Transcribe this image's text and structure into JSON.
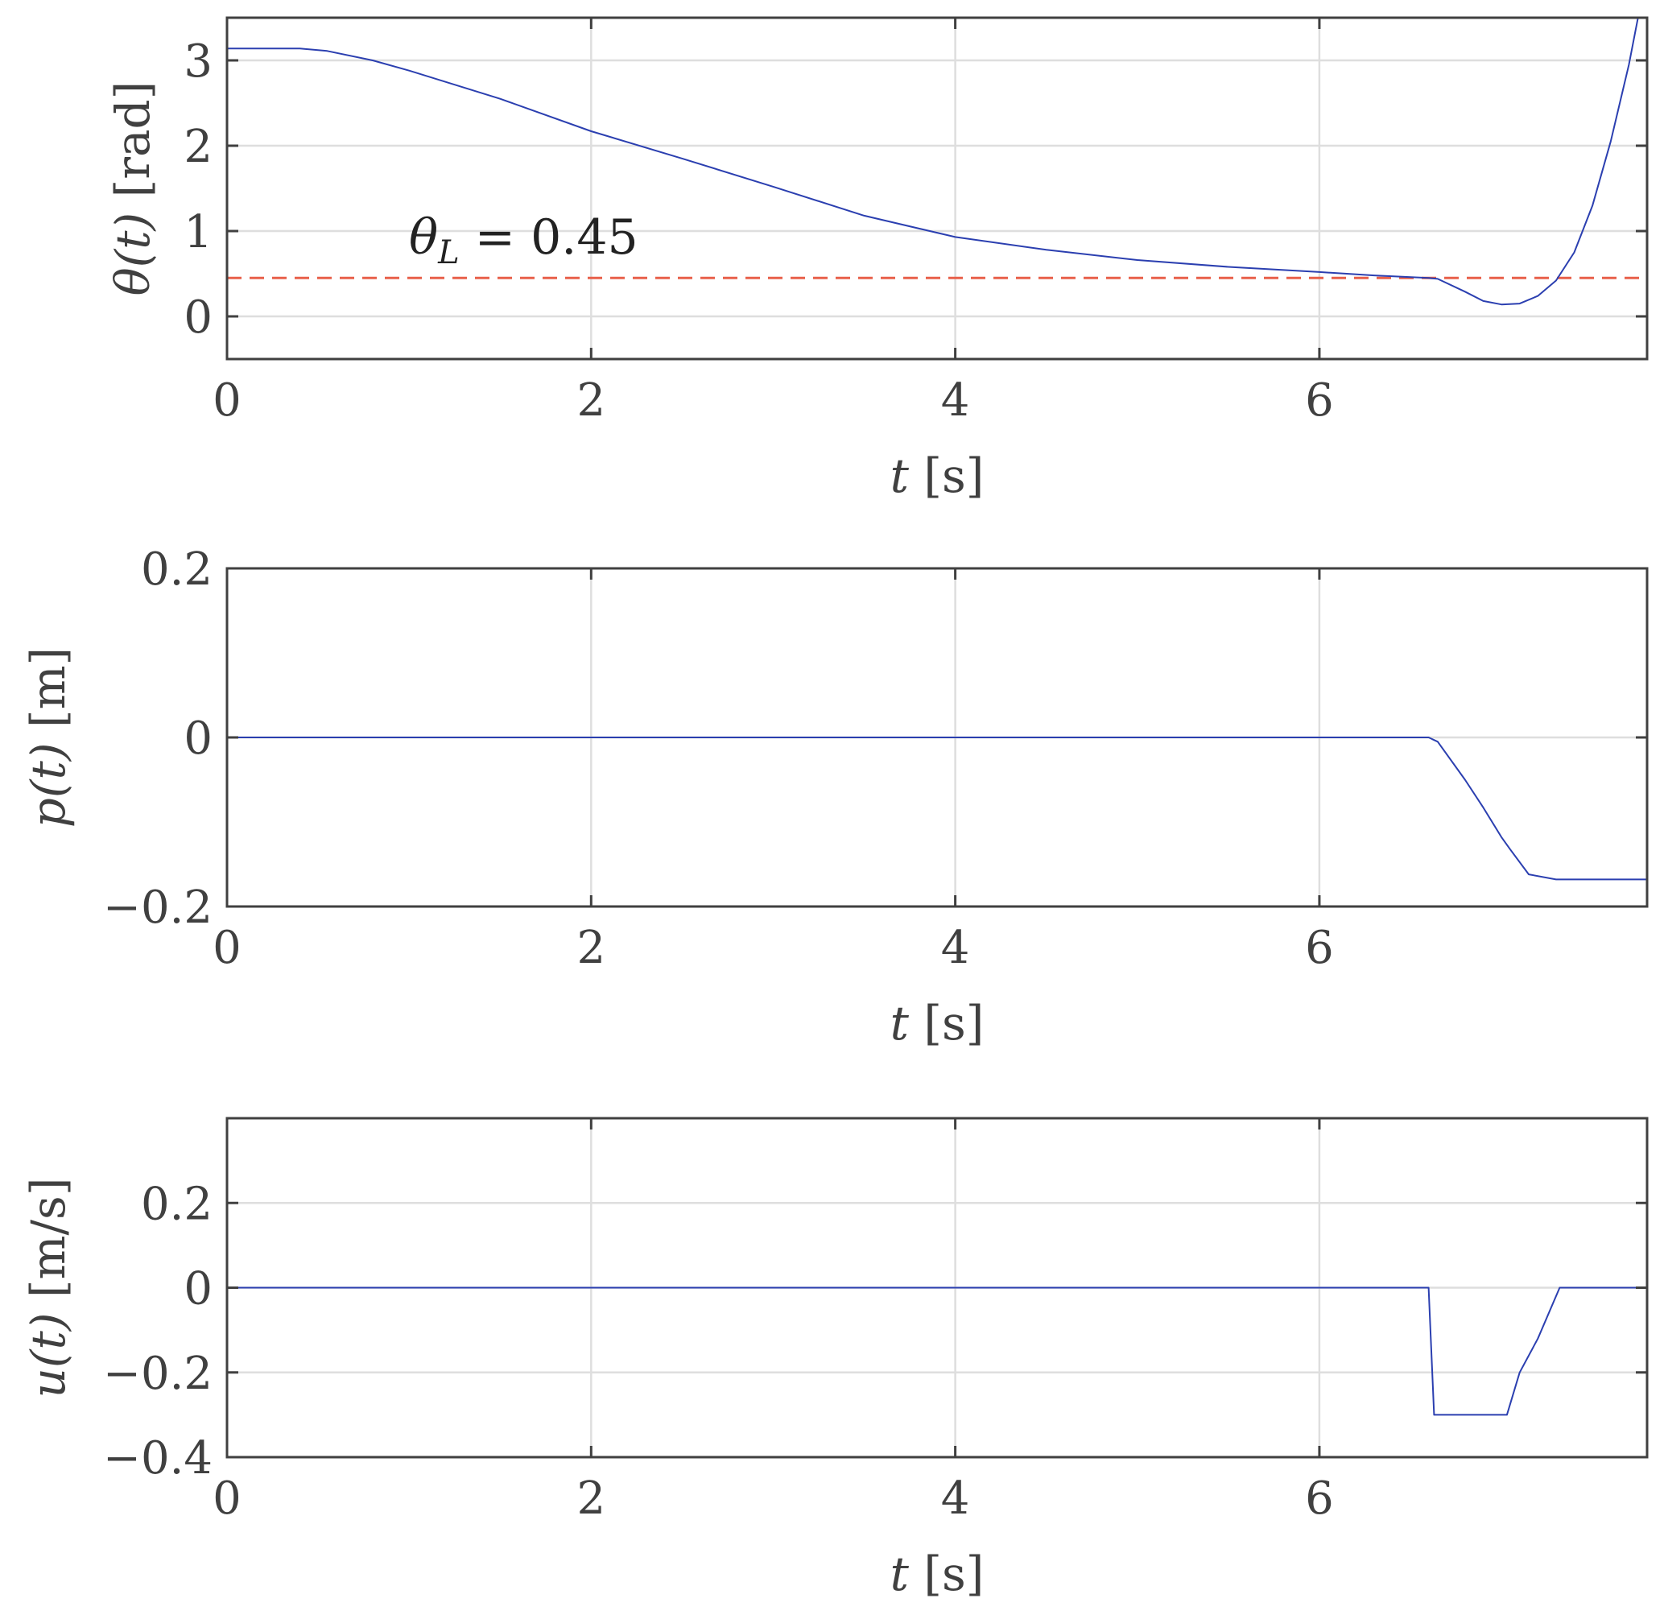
{
  "chart_data": [
    {
      "type": "line",
      "xlabel": "t [s]",
      "ylabel": "θ(t) [rad]",
      "xlim": [
        0,
        7.8
      ],
      "ylim": [
        -0.5,
        3.5
      ],
      "xticks": [
        0,
        2,
        4,
        6
      ],
      "yticks": [
        0,
        1,
        2,
        3
      ],
      "grid": true,
      "colors": {
        "series": "#2b3fb0",
        "threshold": "#e8604a"
      },
      "series": [
        {
          "x": [
            0,
            0.4,
            0.55,
            0.8,
            1.0,
            1.5,
            2.0,
            2.5,
            3.0,
            3.5,
            4.0,
            4.5,
            5.0,
            5.5,
            6.0,
            6.3,
            6.6,
            6.65,
            6.8,
            6.9,
            7.0,
            7.1,
            7.2,
            7.3,
            7.4,
            7.5,
            7.6,
            7.7,
            7.75
          ],
          "y": [
            3.14,
            3.14,
            3.11,
            3.0,
            2.88,
            2.55,
            2.17,
            1.85,
            1.52,
            1.18,
            0.93,
            0.78,
            0.66,
            0.58,
            0.52,
            0.48,
            0.45,
            0.44,
            0.29,
            0.18,
            0.14,
            0.15,
            0.24,
            0.42,
            0.75,
            1.3,
            2.05,
            2.95,
            3.5
          ]
        }
      ],
      "threshold": {
        "y": 0.45,
        "style": "dashed"
      },
      "annotation": {
        "symbol": "θ",
        "subscript": "L",
        "rest": " = 0.45"
      }
    },
    {
      "type": "line",
      "xlabel": "t [s]",
      "ylabel": "p(t) [m]",
      "xlim": [
        0,
        7.8
      ],
      "ylim": [
        -0.2,
        0.2
      ],
      "xticks": [
        0,
        2,
        4,
        6
      ],
      "yticks": [
        -0.2,
        0,
        0.2
      ],
      "ytick_labels": [
        "−0.2",
        "0",
        "0.2"
      ],
      "grid": true,
      "colors": {
        "series": "#2b3fb0"
      },
      "series": [
        {
          "x": [
            0,
            6.6,
            6.65,
            6.8,
            6.9,
            7.0,
            7.05,
            7.15,
            7.3,
            7.8
          ],
          "y": [
            0,
            0,
            -0.005,
            -0.05,
            -0.083,
            -0.118,
            -0.133,
            -0.162,
            -0.168,
            -0.168
          ]
        }
      ]
    },
    {
      "type": "line",
      "xlabel": "t [s]",
      "ylabel": "u(t) [m/s]",
      "xlim": [
        0,
        7.8
      ],
      "ylim": [
        -0.4,
        0.4
      ],
      "xticks": [
        0,
        2,
        4,
        6
      ],
      "yticks": [
        -0.4,
        -0.2,
        0,
        0.2
      ],
      "ytick_labels": [
        "−0.4",
        "−0.2",
        "0",
        "0.2"
      ],
      "grid": true,
      "colors": {
        "series": "#2b3fb0"
      },
      "series": [
        {
          "x": [
            0,
            6.6,
            6.63,
            7.03,
            7.1,
            7.2,
            7.32,
            7.8
          ],
          "y": [
            0,
            0,
            -0.3,
            -0.3,
            -0.2,
            -0.12,
            0,
            0
          ]
        }
      ]
    }
  ]
}
